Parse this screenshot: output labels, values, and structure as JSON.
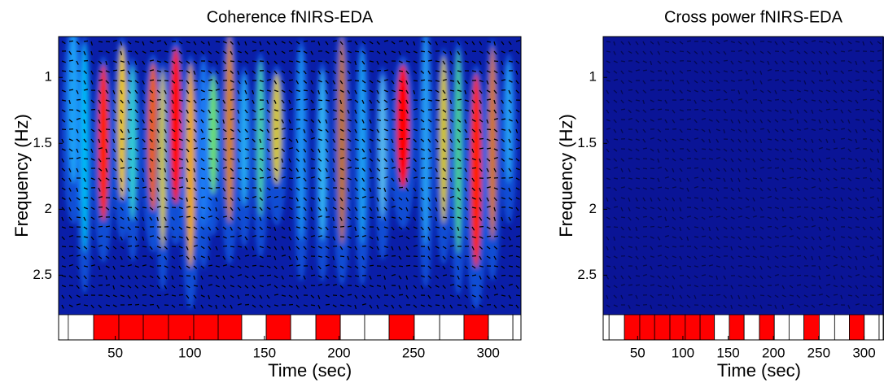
{
  "chart_data": [
    {
      "type": "heatmap",
      "title": "Coherence fNIRS-EDA",
      "x_label": "Time (sec)",
      "y_label": "Frequency (Hz)",
      "xlim": [
        12,
        322
      ],
      "xticks": [
        50,
        100,
        150,
        200,
        250,
        300
      ],
      "ylim": [
        0.69,
        2.8
      ],
      "yticks": [
        1,
        1.5,
        2,
        2.5
      ],
      "y_inverted": true,
      "grid": false,
      "events": [
        {
          "start": 12,
          "end": 18.5,
          "color": "#ffffff"
        },
        {
          "start": 18.5,
          "end": 35.5,
          "color": "#ffffff"
        },
        {
          "start": 35.5,
          "end": 52.4,
          "color": "#ff0000"
        },
        {
          "start": 52.4,
          "end": 68.8,
          "color": "#ff0000"
        },
        {
          "start": 68.8,
          "end": 85.7,
          "color": "#ff0000"
        },
        {
          "start": 85.7,
          "end": 102.6,
          "color": "#ff0000"
        },
        {
          "start": 102.6,
          "end": 119,
          "color": "#ff0000"
        },
        {
          "start": 119,
          "end": 134.8,
          "color": "#ff0000"
        },
        {
          "start": 134.8,
          "end": 151.2,
          "color": "#ffffff"
        },
        {
          "start": 151.2,
          "end": 167.6,
          "color": "#ff0000"
        },
        {
          "start": 167.6,
          "end": 184.5,
          "color": "#ffffff"
        },
        {
          "start": 184.5,
          "end": 200.9,
          "color": "#ff0000"
        },
        {
          "start": 200.9,
          "end": 217.2,
          "color": "#ffffff"
        },
        {
          "start": 217.2,
          "end": 233.6,
          "color": "#ffffff"
        },
        {
          "start": 233.6,
          "end": 250.5,
          "color": "#ff0000"
        },
        {
          "start": 250.5,
          "end": 267.5,
          "color": "#ffffff"
        },
        {
          "start": 267.5,
          "end": 283.8,
          "color": "#ffffff"
        },
        {
          "start": 283.8,
          "end": 300.2,
          "color": "#ff0000"
        },
        {
          "start": 300.2,
          "end": 316.6,
          "color": "#ffffff"
        },
        {
          "start": 316.6,
          "end": 322,
          "color": "#ffffff"
        }
      ]
    },
    {
      "type": "heatmap",
      "title": "Cross power fNIRS-EDA",
      "x_label": "Time (sec)",
      "y_label": "Frequency (Hz)",
      "xlim": [
        12,
        322
      ],
      "xticks": [
        50,
        100,
        150,
        200,
        250,
        300
      ],
      "ylim": [
        0.69,
        2.8
      ],
      "yticks": [
        1,
        1.5,
        2,
        2.5
      ],
      "y_inverted": true,
      "grid": false,
      "events": [
        {
          "start": 12,
          "end": 18.5,
          "color": "#ffffff"
        },
        {
          "start": 18.5,
          "end": 35.5,
          "color": "#ffffff"
        },
        {
          "start": 35.5,
          "end": 52.4,
          "color": "#ff0000"
        },
        {
          "start": 52.4,
          "end": 68.8,
          "color": "#ff0000"
        },
        {
          "start": 68.8,
          "end": 85.7,
          "color": "#ff0000"
        },
        {
          "start": 85.7,
          "end": 102.6,
          "color": "#ff0000"
        },
        {
          "start": 102.6,
          "end": 119,
          "color": "#ff0000"
        },
        {
          "start": 119,
          "end": 134.8,
          "color": "#ff0000"
        },
        {
          "start": 134.8,
          "end": 151.2,
          "color": "#ffffff"
        },
        {
          "start": 151.2,
          "end": 167.6,
          "color": "#ff0000"
        },
        {
          "start": 167.6,
          "end": 184.5,
          "color": "#ffffff"
        },
        {
          "start": 184.5,
          "end": 200.9,
          "color": "#ff0000"
        },
        {
          "start": 200.9,
          "end": 217.2,
          "color": "#ffffff"
        },
        {
          "start": 217.2,
          "end": 233.6,
          "color": "#ffffff"
        },
        {
          "start": 233.6,
          "end": 250.5,
          "color": "#ff0000"
        },
        {
          "start": 250.5,
          "end": 267.5,
          "color": "#ffffff"
        },
        {
          "start": 267.5,
          "end": 283.8,
          "color": "#ffffff"
        },
        {
          "start": 283.8,
          "end": 300.2,
          "color": "#ff0000"
        },
        {
          "start": 300.2,
          "end": 316.6,
          "color": "#ffffff"
        },
        {
          "start": 316.6,
          "end": 322,
          "color": "#ffffff"
        }
      ]
    }
  ]
}
